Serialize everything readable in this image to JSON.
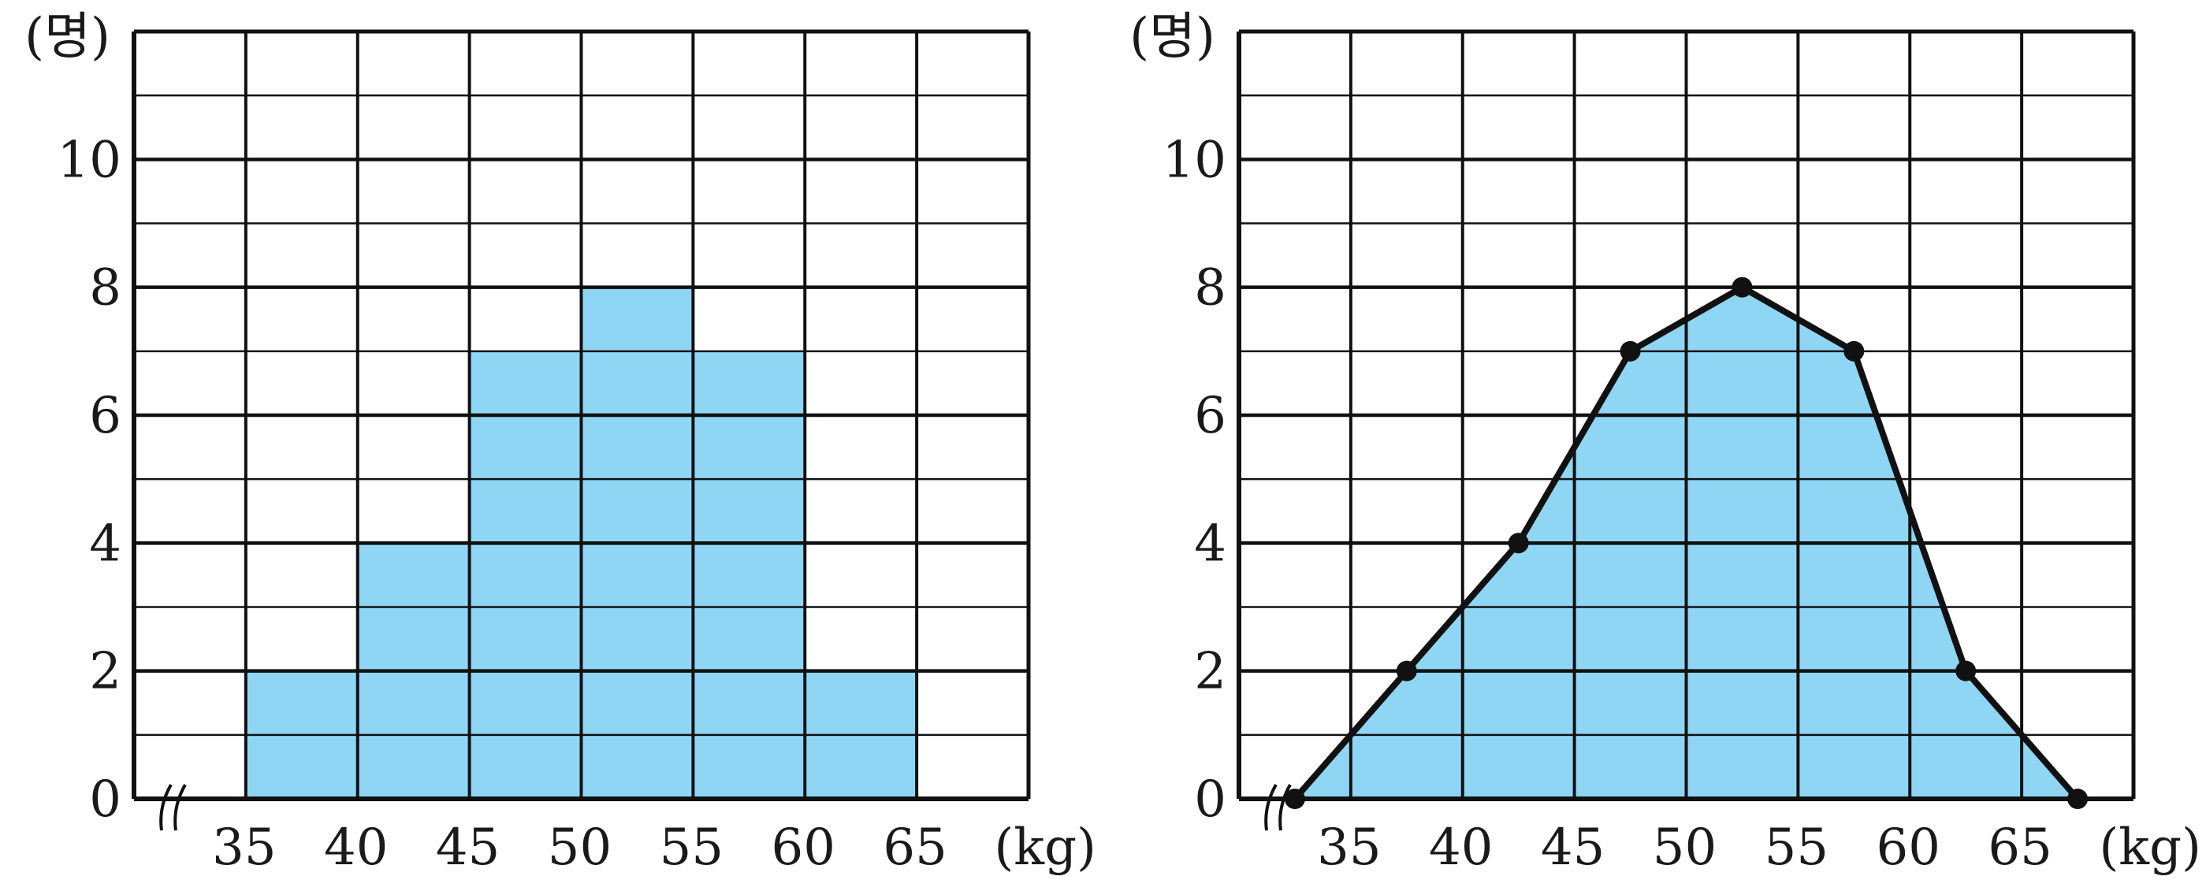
{
  "chart_data": [
    {
      "type": "bar",
      "subtype": "histogram",
      "bins": [
        [
          35,
          40
        ],
        [
          40,
          45
        ],
        [
          45,
          50
        ],
        [
          50,
          55
        ],
        [
          55,
          60
        ],
        [
          60,
          65
        ]
      ],
      "values": [
        2,
        4,
        7,
        8,
        7,
        2
      ],
      "xlim": [
        30,
        70
      ],
      "ylim": [
        0,
        12
      ],
      "x_ticks": [
        "35",
        "40",
        "45",
        "50",
        "55",
        "60",
        "65"
      ],
      "y_ticks": [
        "0",
        "2",
        "4",
        "6",
        "8",
        "10"
      ],
      "x_unit": "(kg)",
      "y_unit": "(명)",
      "grid": true,
      "axis_break": true,
      "fill_color": "#8fd6f5"
    },
    {
      "type": "area",
      "subtype": "frequency polygon",
      "x": [
        32.5,
        37.5,
        42.5,
        47.5,
        52.5,
        57.5,
        62.5,
        67.5
      ],
      "values": [
        0,
        2,
        4,
        7,
        8,
        7,
        2,
        0
      ],
      "xlim": [
        30,
        70
      ],
      "ylim": [
        0,
        12
      ],
      "x_ticks": [
        "35",
        "40",
        "45",
        "50",
        "55",
        "60",
        "65"
      ],
      "y_ticks": [
        "0",
        "2",
        "4",
        "6",
        "8",
        "10"
      ],
      "x_unit": "(kg)",
      "y_unit": "(명)",
      "grid": true,
      "axis_break": true,
      "fill_color": "#8fd6f5",
      "line_color": "#111111"
    }
  ]
}
